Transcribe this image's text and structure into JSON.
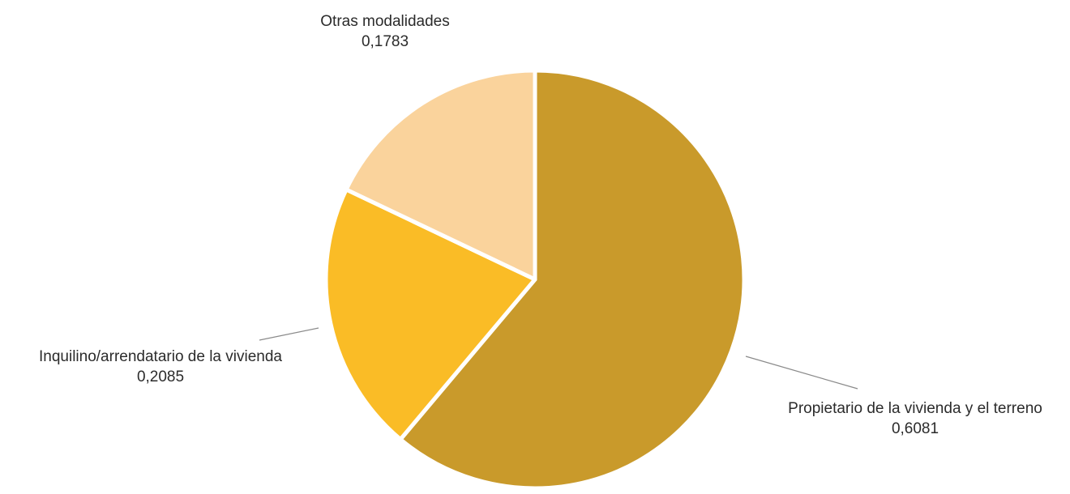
{
  "chart_data": {
    "type": "pie",
    "title": "",
    "start_angle_deg": 0,
    "direction": "clockwise",
    "slices": [
      {
        "label": "Propietario de la vivienda y el terreno",
        "value": 0.6081,
        "value_text": "0,6081",
        "color": "#C99A2B"
      },
      {
        "label": "Inquilino/arrendatario de la vivienda",
        "value": 0.2085,
        "value_text": "0,2085",
        "color": "#FABC26"
      },
      {
        "label": "Otras modalidades",
        "value": 0.1783,
        "value_text": "0,1783",
        "color": "#FAD39C"
      }
    ]
  }
}
